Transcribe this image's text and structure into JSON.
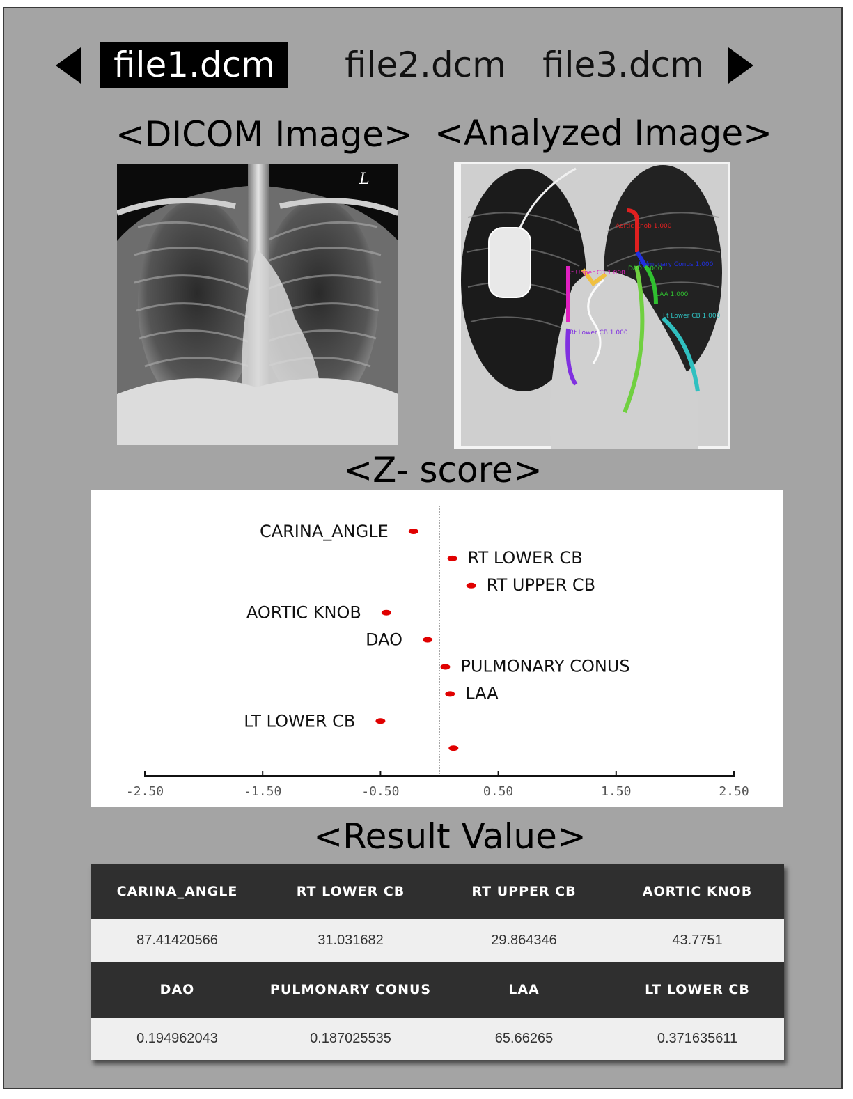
{
  "nav": {
    "prev_icon": "triangle-left-icon",
    "next_icon": "triangle-right-icon",
    "files": [
      "file1.dcm",
      "file2.dcm",
      "file3.dcm"
    ],
    "selected": "file1.dcm"
  },
  "headings": {
    "dicom": "<DICOM Image>",
    "analyzed": "<Analyzed Image>",
    "zscore": "<Z- score>",
    "result": "<Result Value>"
  },
  "dicom_image": {
    "marker": "L"
  },
  "analyzed_image": {
    "annotations": [
      {
        "label": "Aortic Knob 1.000",
        "color": "#e02020"
      },
      {
        "label": "Pulmonary Conus 1.000",
        "color": "#2030e0"
      },
      {
        "label": "DAO 1.000",
        "color": "#30d030"
      },
      {
        "label": "Rt Upper CB 1.000",
        "color": "#e020c0"
      },
      {
        "label": "LAA 1.000",
        "color": "#30c030"
      },
      {
        "label": "Lt Lower CB 1.000",
        "color": "#30c0c0"
      },
      {
        "label": "Rt Lower CB 1.000",
        "color": "#8030e0"
      }
    ]
  },
  "chart_data": {
    "type": "scatter",
    "title": "",
    "xlabel": "",
    "ylabel": "",
    "xlim": [
      -2.5,
      2.5
    ],
    "xticks": [
      "-2.50",
      "-1.50",
      "-0.50",
      "0.50",
      "1.50",
      "2.50"
    ],
    "reference_line": 0,
    "marker_color": "#e00000",
    "points": [
      {
        "label": "CARINA_ANGLE",
        "x": -0.22,
        "label_side": "left"
      },
      {
        "label": "RT LOWER CB",
        "x": 0.11,
        "label_side": "right"
      },
      {
        "label": "RT UPPER CB",
        "x": 0.27,
        "label_side": "right"
      },
      {
        "label": "AORTIC KNOB",
        "x": -0.45,
        "label_side": "left"
      },
      {
        "label": "DAO",
        "x": -0.1,
        "label_side": "left"
      },
      {
        "label": "PULMONARY CONUS",
        "x": 0.05,
        "label_side": "right"
      },
      {
        "label": "LAA",
        "x": 0.09,
        "label_side": "right"
      },
      {
        "label": "LT LOWER CB",
        "x": -0.5,
        "label_side": "left"
      },
      {
        "label": "",
        "x": 0.12,
        "label_side": "right"
      }
    ]
  },
  "results": {
    "rows": [
      {
        "headers": [
          "CARINA_ANGLE",
          "RT LOWER CB",
          "RT UPPER CB",
          "AORTIC KNOB"
        ],
        "values": [
          "87.41420566",
          "31.031682",
          "29.864346",
          "43.7751"
        ]
      },
      {
        "headers": [
          "DAO",
          "PULMONARY CONUS",
          "LAA",
          "LT LOWER CB"
        ],
        "values": [
          "0.194962043",
          "0.187025535",
          "65.66265",
          "0.371635611"
        ]
      }
    ]
  }
}
